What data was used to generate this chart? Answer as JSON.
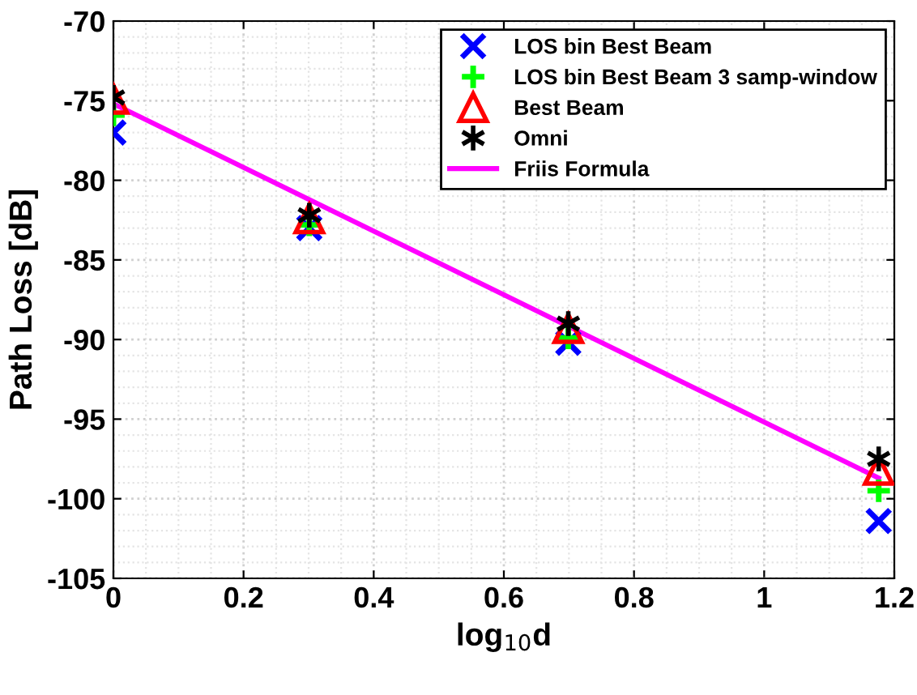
{
  "chart_data": {
    "type": "scatter",
    "xlabel": "log$_{10}$d",
    "ylabel": "Path Loss [dB]",
    "xlim": [
      0,
      1.2
    ],
    "ylim": [
      -105,
      -70
    ],
    "xticks": [
      0,
      0.2,
      0.4,
      0.6,
      0.8,
      1,
      1.2
    ],
    "yticks": [
      -105,
      -100,
      -95,
      -90,
      -85,
      -80,
      -75,
      -70
    ],
    "grid": true,
    "legend": "top right",
    "series": [
      {
        "name": "LOS bin Best Beam",
        "color": "#0000ff",
        "marker": "cross",
        "x": [
          0,
          0.301,
          0.699,
          1.176
        ],
        "values": [
          -77.0,
          -83.0,
          -90.2,
          -101.4
        ]
      },
      {
        "name": "LOS bin Best Beam 3 samp-window",
        "color": "#00ff00",
        "marker": "plus",
        "x": [
          0,
          0.301,
          0.699,
          1.176
        ],
        "values": [
          -75.9,
          -82.8,
          -89.9,
          -99.5
        ]
      },
      {
        "name": "Best Beam",
        "color": "#ff0000",
        "marker": "triangle",
        "x": [
          0,
          0.301,
          0.699,
          1.176
        ],
        "values": [
          -74.9,
          -82.4,
          -89.3,
          -98.2
        ]
      },
      {
        "name": "Omni",
        "color": "#000000",
        "x": [
          0,
          0.301,
          0.699,
          1.176
        ],
        "values": [
          -74.8,
          -82.2,
          -89.0,
          -97.5
        ]
      },
      {
        "name": "Friis Formula",
        "color": "#ff00ff",
        "type": "line",
        "marker": "none",
        "x": [
          0,
          1.176
        ],
        "values": [
          -75.2,
          -98.7
        ]
      }
    ]
  }
}
